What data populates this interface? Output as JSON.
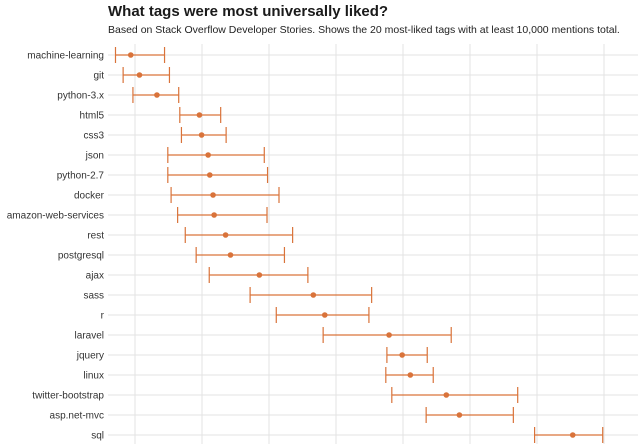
{
  "title": "What tags were most universally liked?",
  "subtitle": "Based on Stack Overflow Developer Stories. Shows the 20 most-liked tags with at least 10,000 mentions total.",
  "colors": {
    "accent": "#d9733a",
    "grid": "#e3e3e3",
    "text": "#333333"
  },
  "chart_data": {
    "type": "scatter",
    "title": "What tags were most universally liked?",
    "subtitle": "Based on Stack Overflow Developer Stories. Shows the 20 most-liked tags with at least 10,000 mentions total.",
    "xlabel": "",
    "ylabel": "",
    "grid": true,
    "legend": "none",
    "xlim": [
      0,
      1
    ],
    "categories": [
      "machine-learning",
      "git",
      "python-3.x",
      "html5",
      "css3",
      "json",
      "python-2.7",
      "docker",
      "amazon-web-services",
      "rest",
      "postgresql",
      "ajax",
      "sass",
      "r",
      "laravel",
      "jquery",
      "linux",
      "twitter-bootstrap",
      "asp.net-mvc",
      "sql"
    ],
    "estimate": [
      0.139,
      0.155,
      0.187,
      0.265,
      0.269,
      0.281,
      0.284,
      0.29,
      0.292,
      0.313,
      0.322,
      0.375,
      0.474,
      0.495,
      0.613,
      0.637,
      0.652,
      0.718,
      0.742,
      0.95
    ],
    "low": [
      0.111,
      0.125,
      0.143,
      0.229,
      0.232,
      0.207,
      0.207,
      0.213,
      0.225,
      0.239,
      0.259,
      0.283,
      0.358,
      0.406,
      0.492,
      0.609,
      0.607,
      0.618,
      0.681,
      0.88
    ],
    "high": [
      0.201,
      0.21,
      0.227,
      0.304,
      0.314,
      0.384,
      0.39,
      0.411,
      0.389,
      0.436,
      0.421,
      0.464,
      0.581,
      0.576,
      0.727,
      0.683,
      0.694,
      0.849,
      0.841,
      1.005
    ]
  }
}
